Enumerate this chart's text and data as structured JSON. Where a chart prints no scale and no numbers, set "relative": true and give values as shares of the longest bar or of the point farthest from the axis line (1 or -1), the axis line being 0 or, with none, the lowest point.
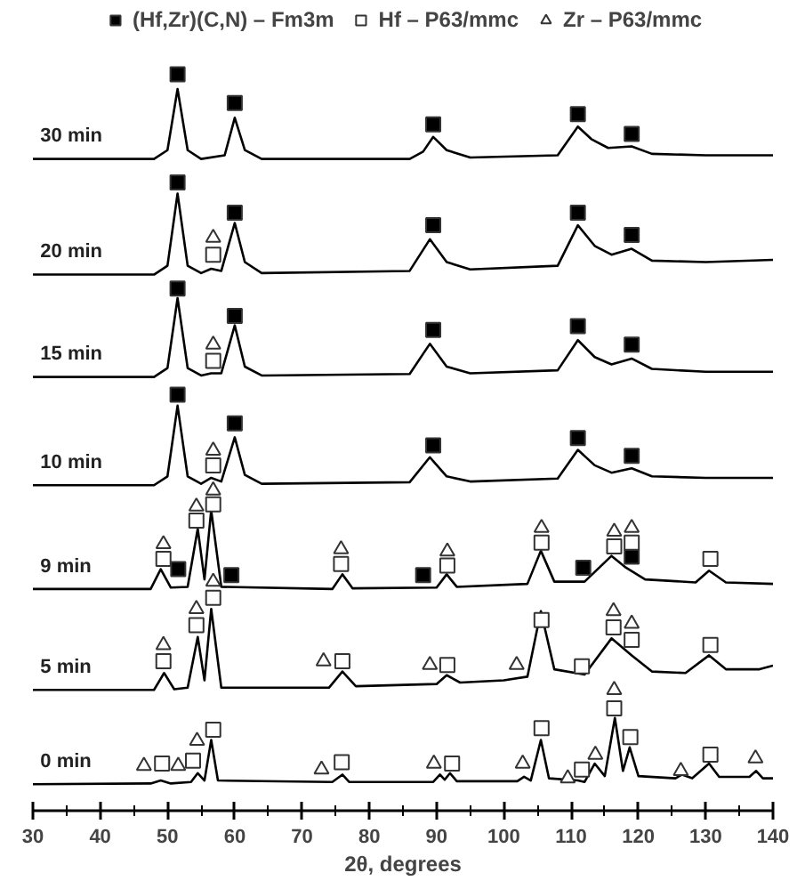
{
  "chart_data": {
    "type": "line",
    "relative": true,
    "xlabel": "2θ, degrees",
    "xlim": [
      30,
      140
    ],
    "xticks": [
      30,
      40,
      50,
      60,
      70,
      80,
      90,
      100,
      110,
      120,
      130,
      140
    ],
    "legend": "top",
    "line_style": "solid",
    "series": [
      {
        "name": "30 min",
        "color": "#000000",
        "x": [
          30,
          48,
          50,
          51.5,
          53,
          55,
          58.5,
          60,
          61.5,
          64,
          86,
          88,
          89.5,
          91.5,
          95,
          108,
          111,
          113,
          115.5,
          119,
          122,
          130,
          140
        ],
        "values": [
          0.885,
          0.885,
          0.897,
          0.98,
          0.897,
          0.885,
          0.89,
          0.941,
          0.897,
          0.885,
          0.885,
          0.895,
          0.915,
          0.897,
          0.887,
          0.89,
          0.929,
          0.912,
          0.9,
          0.902,
          0.892,
          0.89,
          0.89
        ]
      },
      {
        "name": "20 min",
        "color": "#000000",
        "x": [
          30,
          48,
          50,
          51.5,
          53,
          55,
          56.5,
          58,
          60,
          61.5,
          64,
          86,
          89,
          91.5,
          95,
          108,
          111,
          113.5,
          116,
          119,
          122,
          130,
          140
        ],
        "values": [
          0.728,
          0.728,
          0.74,
          0.838,
          0.74,
          0.73,
          0.736,
          0.733,
          0.798,
          0.745,
          0.73,
          0.733,
          0.776,
          0.745,
          0.735,
          0.74,
          0.795,
          0.767,
          0.755,
          0.763,
          0.747,
          0.745,
          0.748
        ]
      },
      {
        "name": "15 min",
        "color": "#000000",
        "x": [
          30,
          48,
          50,
          51.5,
          53,
          55,
          56.5,
          58,
          60,
          61.5,
          64,
          86,
          89,
          91.5,
          95,
          108,
          111,
          113.5,
          116,
          119,
          122,
          130,
          140
        ],
        "values": [
          0.589,
          0.589,
          0.601,
          0.696,
          0.601,
          0.591,
          0.594,
          0.594,
          0.659,
          0.603,
          0.591,
          0.593,
          0.634,
          0.603,
          0.594,
          0.598,
          0.639,
          0.616,
          0.606,
          0.614,
          0.6,
          0.596,
          0.596
        ]
      },
      {
        "name": "10 min",
        "color": "#000000",
        "x": [
          30,
          48,
          50,
          51.5,
          53,
          55,
          56.5,
          58,
          60,
          61.5,
          64,
          86,
          89,
          91.5,
          95,
          108,
          111,
          113.5,
          116,
          119,
          122,
          130,
          140
        ],
        "values": [
          0.442,
          0.442,
          0.454,
          0.55,
          0.454,
          0.444,
          0.452,
          0.447,
          0.507,
          0.456,
          0.444,
          0.446,
          0.48,
          0.454,
          0.447,
          0.451,
          0.49,
          0.469,
          0.459,
          0.465,
          0.454,
          0.452,
          0.452
        ]
      },
      {
        "name": "9 min",
        "color": "#000000",
        "x": [
          30,
          47.5,
          49,
          50.5,
          53,
          54.5,
          55.5,
          56.5,
          58,
          74.5,
          76,
          77.5,
          90,
          91.5,
          93,
          103.5,
          105.5,
          107.5,
          112,
          116,
          118,
          121,
          128.5,
          130.5,
          133,
          140
        ],
        "values": [
          0.301,
          0.301,
          0.328,
          0.303,
          0.304,
          0.383,
          0.314,
          0.408,
          0.304,
          0.301,
          0.321,
          0.302,
          0.303,
          0.321,
          0.304,
          0.308,
          0.353,
          0.311,
          0.311,
          0.346,
          0.331,
          0.314,
          0.31,
          0.326,
          0.31,
          0.308
        ]
      },
      {
        "name": "5 min",
        "color": "#000000",
        "x": [
          30,
          48,
          49.5,
          51,
          53,
          54.5,
          55.5,
          56.5,
          58,
          74,
          76,
          78,
          90,
          91.5,
          93.5,
          100,
          103.5,
          105.5,
          107.5,
          112,
          116,
          119,
          122,
          127,
          130.5,
          133,
          138,
          140
        ],
        "values": [
          0.164,
          0.164,
          0.187,
          0.165,
          0.167,
          0.236,
          0.177,
          0.274,
          0.167,
          0.167,
          0.189,
          0.169,
          0.172,
          0.184,
          0.174,
          0.177,
          0.182,
          0.271,
          0.192,
          0.185,
          0.234,
          0.211,
          0.189,
          0.187,
          0.211,
          0.192,
          0.192,
          0.197
        ]
      },
      {
        "name": "0 min",
        "color": "#000000",
        "x": [
          30,
          47.5,
          49,
          50.5,
          53.5,
          54.5,
          55.5,
          56.5,
          57.5,
          74.5,
          76,
          77,
          89.5,
          90.5,
          91.2,
          92,
          93,
          102,
          103,
          104,
          105.5,
          106.7,
          111,
          112,
          113.5,
          115,
          116.5,
          117.7,
          118.7,
          120,
          125.5,
          126.5,
          128,
          130.5,
          132,
          136.5,
          137.5,
          138.5,
          140
        ],
        "values": [
          0.036,
          0.037,
          0.041,
          0.037,
          0.039,
          0.051,
          0.041,
          0.096,
          0.041,
          0.039,
          0.049,
          0.039,
          0.039,
          0.049,
          0.042,
          0.051,
          0.04,
          0.04,
          0.046,
          0.041,
          0.096,
          0.044,
          0.041,
          0.039,
          0.064,
          0.047,
          0.126,
          0.054,
          0.086,
          0.047,
          0.044,
          0.049,
          0.044,
          0.064,
          0.046,
          0.046,
          0.054,
          0.044,
          0.044
        ]
      },
      {
        "type": "scatter",
        "marker": "square",
        "name": "(Hf,Zr)(C,N) – Fm3m",
        "color": "#000000",
        "x": [
          51.5,
          60,
          89.5,
          111,
          119,
          51.5,
          60,
          89.5,
          111,
          119,
          51.5,
          60,
          89.5,
          111,
          119,
          51.5,
          60,
          89.5,
          111,
          119,
          51.6,
          59.5,
          88.0,
          111.8,
          119.0
        ],
        "values": [
          1.0,
          0.961,
          0.932,
          0.946,
          0.919,
          0.853,
          0.812,
          0.795,
          0.812,
          0.782,
          0.709,
          0.672,
          0.653,
          0.658,
          0.633,
          0.565,
          0.526,
          0.496,
          0.506,
          0.482,
          0.328,
          0.32,
          0.32,
          0.33,
          0.345
        ]
      },
      {
        "type": "scatter",
        "marker": "square",
        "name": "Hf – P63/mmc",
        "color": "#ffffff",
        "x": [
          56.8,
          56.8,
          56.8,
          49.4,
          54.3,
          56.8,
          75.8,
          91.6,
          105.6,
          116.4,
          119,
          130.7,
          49.4,
          54.3,
          56.8,
          76.0,
          91.6,
          105.6,
          111.6,
          116.3,
          119,
          130.7,
          49.2,
          53.8,
          56.8,
          75.9,
          92.3,
          105.6,
          111.6,
          116.4,
          118.8,
          130.7
        ],
        "values": [
          0.755,
          0.611,
          0.469,
          0.342,
          0.394,
          0.416,
          0.335,
          0.333,
          0.364,
          0.359,
          0.364,
          0.342,
          0.203,
          0.252,
          0.289,
          0.203,
          0.198,
          0.259,
          0.196,
          0.249,
          0.232,
          0.225,
          0.064,
          0.068,
          0.11,
          0.066,
          0.064,
          0.112,
          0.056,
          0.139,
          0.1,
          0.076
        ]
      },
      {
        "type": "scatter",
        "marker": "triangle",
        "name": "Zr – P63/mmc",
        "color": "#ffffff",
        "x": [
          56.8,
          56.8,
          56.8,
          49.4,
          54.3,
          56.8,
          75.8,
          91.6,
          105.6,
          116.4,
          119,
          49.4,
          54.3,
          56.8,
          73.2,
          89.0,
          101.9,
          116.3,
          119,
          46.5,
          51.6,
          54.4,
          72.9,
          89.6,
          102.8,
          109.5,
          113.6,
          116.4,
          126.3,
          137.4
        ],
        "values": [
          0.778,
          0.633,
          0.489,
          0.362,
          0.413,
          0.435,
          0.355,
          0.352,
          0.384,
          0.379,
          0.384,
          0.225,
          0.274,
          0.311,
          0.203,
          0.198,
          0.198,
          0.271,
          0.254,
          0.061,
          0.061,
          0.095,
          0.056,
          0.064,
          0.064,
          0.044,
          0.076,
          0.164,
          0.054,
          0.071
        ]
      }
    ]
  }
}
